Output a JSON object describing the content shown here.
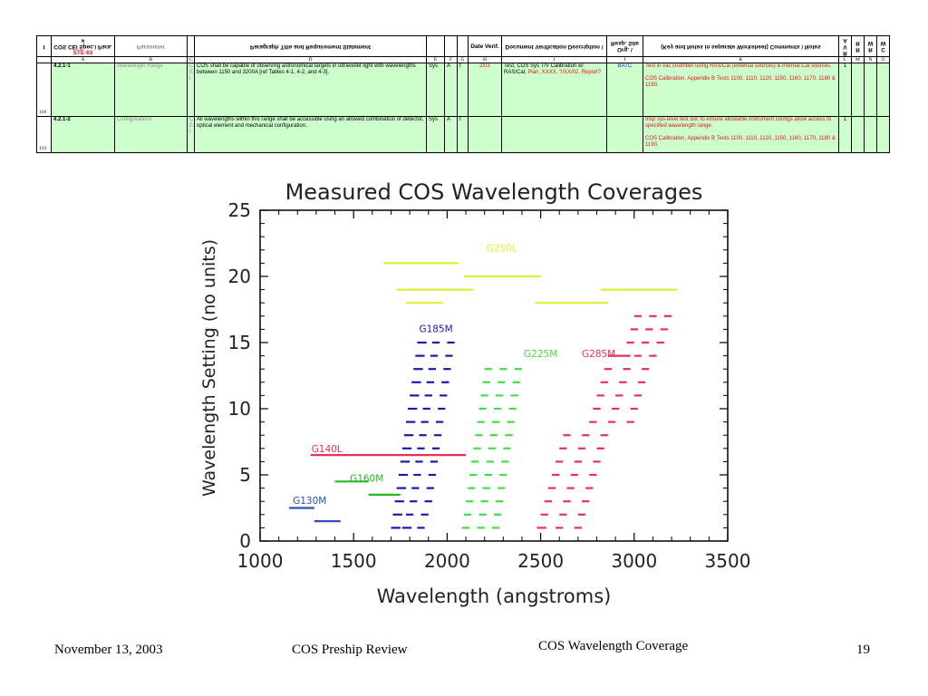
{
  "table": {
    "header": {
      "num": "I",
      "para_label": "COS CEI Spec.\\ Para. #",
      "spec_id": "STE-63",
      "parameter": "Parameter",
      "statement": "Paragraph Title and Requirement Statement",
      "date": "Date Verif.",
      "doc": "Document Verification Description \\",
      "org": "Org. \\ Resp. Site",
      "comments": "(Key and Notes in separate Worksheet) Comments \\ Notes",
      "results": "Results",
      "rva": "R V A",
      "waiver": "Waiver",
      "c_w": "C W",
      "r_w": "R W",
      "r_r": "R R"
    },
    "letters": [
      "A",
      "B",
      "C",
      "D",
      "E",
      "F",
      "G",
      "H",
      "I",
      "J",
      "K",
      "L",
      "M",
      "N",
      "O"
    ],
    "rows": [
      {
        "rownum": "118",
        "para": "4.2.1-1",
        "parameter": "Wavelength Range",
        "c": "C\nE\nI",
        "statement": "COS shall be capable of observing astronomical targets in ultraviolet light with wavelengths between 1150 and 3200A [ref Tables 4-1, 4-2, and 4-3].",
        "e": "Sys",
        "f": "A",
        "g": "t",
        "date": "2/03",
        "doc_a": "Test, COS Sys T/V Calibration w/ RAS/Cal, ",
        "doc_b": "Plan, XXXX, ?/XX/02. Report?",
        "org": "BATC",
        "comment_a": "Test in vac chamber using RAS/Cal (external sources) & internal Cal sources.",
        "comment_b": "COS Calibration, Appendix B Tests 1100, 1110, 1120, 1150, 1160, 1170, 1180 & 1190.",
        "l": "1"
      },
      {
        "rownum": "119",
        "para": "4.2.1-2",
        "parameter": "Configurations",
        "c": "C\nE\nI",
        "statement": "All wavelengths within this range shall be accessible using an allowed combination of detector, optical element and mechanical configuration.",
        "e": "Sys",
        "f": "A",
        "g": "t",
        "date": "",
        "doc_a": "",
        "doc_b": "",
        "org": "",
        "comment_a": "Insp sys-level test doc to ensure allowable instrument configs allow access to specified wavelength range.",
        "comment_b": "COS Calibration, Appendix B Tests 1100, 1110, 1120, 1150, 1160, 1170, 1180 & 1190.",
        "l": "1"
      }
    ]
  },
  "chart_data": {
    "type": "scatter",
    "title": "Measured COS Wavelength Coverages",
    "xlabel": "Wavelength (angstroms)",
    "ylabel": "Wavelength Setting (no units)",
    "xlim": [
      1000,
      3500
    ],
    "ylim": [
      0,
      25
    ],
    "xticks": [
      1000,
      1500,
      2000,
      2500,
      3000,
      3500
    ],
    "yticks": [
      0,
      5,
      10,
      15,
      20,
      25
    ],
    "grid": false,
    "legend": "none",
    "series": [
      {
        "name": "G130M",
        "color": "#2b4fc8",
        "label_pos": [
          1175,
          2.8
        ],
        "segments": [
          [
            1155,
            1290,
            2.5
          ],
          [
            1290,
            1430,
            1.5
          ]
        ]
      },
      {
        "name": "G160M",
        "color": "#22bb22",
        "label_pos": [
          1480,
          4.5
        ],
        "segments": [
          [
            1400,
            1580,
            4.5
          ],
          [
            1580,
            1750,
            3.5
          ]
        ]
      },
      {
        "name": "G140L",
        "color": "#e8305a",
        "label_pos": [
          1275,
          6.7
        ],
        "segments": [
          [
            1270,
            2100,
            6.5
          ]
        ]
      },
      {
        "name": "G185M",
        "color": "#1a1aaa",
        "label_pos": [
          1850,
          15.8
        ],
        "segments": [
          [
            1700,
            1750,
            1
          ],
          [
            1760,
            1810,
            1
          ],
          [
            1840,
            1880,
            1
          ],
          [
            1710,
            1760,
            2
          ],
          [
            1780,
            1820,
            2
          ],
          [
            1860,
            1900,
            2
          ],
          [
            1720,
            1770,
            3
          ],
          [
            1800,
            1840,
            3
          ],
          [
            1880,
            1920,
            3
          ],
          [
            1730,
            1780,
            4
          ],
          [
            1810,
            1850,
            4
          ],
          [
            1890,
            1930,
            4
          ],
          [
            1740,
            1790,
            5
          ],
          [
            1820,
            1860,
            5
          ],
          [
            1900,
            1940,
            5
          ],
          [
            1750,
            1800,
            6
          ],
          [
            1830,
            1870,
            6
          ],
          [
            1910,
            1950,
            6
          ],
          [
            1760,
            1810,
            7
          ],
          [
            1840,
            1880,
            7
          ],
          [
            1920,
            1960,
            7
          ],
          [
            1770,
            1820,
            8
          ],
          [
            1850,
            1890,
            8
          ],
          [
            1930,
            1970,
            8
          ],
          [
            1780,
            1830,
            9
          ],
          [
            1860,
            1900,
            9
          ],
          [
            1940,
            1980,
            9
          ],
          [
            1790,
            1840,
            10
          ],
          [
            1870,
            1910,
            10
          ],
          [
            1950,
            1990,
            10
          ],
          [
            1800,
            1850,
            11
          ],
          [
            1880,
            1920,
            11
          ],
          [
            1960,
            2000,
            11
          ],
          [
            1810,
            1860,
            12
          ],
          [
            1890,
            1930,
            12
          ],
          [
            1970,
            2010,
            12
          ],
          [
            1820,
            1870,
            13
          ],
          [
            1900,
            1940,
            13
          ],
          [
            1980,
            2020,
            13
          ],
          [
            1830,
            1880,
            14
          ],
          [
            1910,
            1950,
            14
          ],
          [
            1990,
            2030,
            14
          ],
          [
            1840,
            1890,
            15
          ],
          [
            1920,
            1960,
            15
          ],
          [
            2000,
            2040,
            15
          ]
        ]
      },
      {
        "name": "G225M",
        "color": "#44dd44",
        "label_pos": [
          2410,
          13.9
        ],
        "segments": [
          [
            2080,
            2120,
            1
          ],
          [
            2160,
            2200,
            1
          ],
          [
            2240,
            2280,
            1
          ],
          [
            2090,
            2130,
            2
          ],
          [
            2170,
            2210,
            2
          ],
          [
            2250,
            2290,
            2
          ],
          [
            2100,
            2140,
            3
          ],
          [
            2180,
            2220,
            3
          ],
          [
            2260,
            2300,
            3
          ],
          [
            2110,
            2150,
            4
          ],
          [
            2190,
            2230,
            4
          ],
          [
            2270,
            2310,
            4
          ],
          [
            2120,
            2160,
            5
          ],
          [
            2200,
            2240,
            5
          ],
          [
            2280,
            2320,
            5
          ],
          [
            2130,
            2170,
            6
          ],
          [
            2210,
            2250,
            6
          ],
          [
            2290,
            2330,
            6
          ],
          [
            2140,
            2180,
            7
          ],
          [
            2220,
            2260,
            7
          ],
          [
            2300,
            2340,
            7
          ],
          [
            2150,
            2190,
            8
          ],
          [
            2230,
            2270,
            8
          ],
          [
            2310,
            2350,
            8
          ],
          [
            2160,
            2200,
            9
          ],
          [
            2240,
            2280,
            9
          ],
          [
            2320,
            2360,
            9
          ],
          [
            2170,
            2210,
            10
          ],
          [
            2250,
            2290,
            10
          ],
          [
            2330,
            2370,
            10
          ],
          [
            2180,
            2220,
            11
          ],
          [
            2260,
            2300,
            11
          ],
          [
            2340,
            2380,
            11
          ],
          [
            2190,
            2230,
            12
          ],
          [
            2270,
            2310,
            12
          ],
          [
            2350,
            2390,
            12
          ],
          [
            2200,
            2240,
            13
          ],
          [
            2280,
            2320,
            13
          ],
          [
            2360,
            2400,
            13
          ]
        ]
      },
      {
        "name": "G285M",
        "color": "#e8305a",
        "label_pos": [
          2720,
          13.9
        ],
        "segments": [
          [
            2480,
            2530,
            1
          ],
          [
            2580,
            2620,
            1
          ],
          [
            2680,
            2720,
            1
          ],
          [
            2500,
            2540,
            2
          ],
          [
            2600,
            2640,
            2
          ],
          [
            2700,
            2740,
            2
          ],
          [
            2520,
            2560,
            3
          ],
          [
            2620,
            2660,
            3
          ],
          [
            2720,
            2760,
            3
          ],
          [
            2540,
            2580,
            4
          ],
          [
            2640,
            2680,
            4
          ],
          [
            2740,
            2780,
            4
          ],
          [
            2560,
            2600,
            5
          ],
          [
            2660,
            2700,
            5
          ],
          [
            2760,
            2800,
            5
          ],
          [
            2580,
            2620,
            6
          ],
          [
            2680,
            2720,
            6
          ],
          [
            2780,
            2820,
            6
          ],
          [
            2600,
            2640,
            7
          ],
          [
            2700,
            2740,
            7
          ],
          [
            2800,
            2840,
            7
          ],
          [
            2620,
            2660,
            8
          ],
          [
            2720,
            2760,
            8
          ],
          [
            2820,
            2860,
            8
          ],
          [
            2760,
            2800,
            9
          ],
          [
            2860,
            2900,
            9
          ],
          [
            2960,
            3000,
            9
          ],
          [
            2780,
            2820,
            10
          ],
          [
            2880,
            2920,
            10
          ],
          [
            2980,
            3020,
            10
          ],
          [
            2800,
            2840,
            11
          ],
          [
            2900,
            2940,
            11
          ],
          [
            3000,
            3040,
            11
          ],
          [
            2820,
            2860,
            12
          ],
          [
            2920,
            2960,
            12
          ],
          [
            3020,
            3060,
            12
          ],
          [
            2840,
            2880,
            13
          ],
          [
            2940,
            2980,
            13
          ],
          [
            3040,
            3080,
            13
          ],
          [
            2860,
            2980,
            14
          ],
          [
            3000,
            3040,
            14
          ],
          [
            3080,
            3120,
            14
          ],
          [
            2960,
            3000,
            15
          ],
          [
            3040,
            3080,
            15
          ],
          [
            3120,
            3160,
            15
          ],
          [
            2980,
            3020,
            16
          ],
          [
            3060,
            3100,
            16
          ],
          [
            3140,
            3180,
            16
          ],
          [
            3000,
            3040,
            17
          ],
          [
            3080,
            3120,
            17
          ],
          [
            3160,
            3200,
            17
          ]
        ]
      },
      {
        "name": "G250L",
        "color": "#ddee33",
        "label_pos": [
          2210,
          21.9
        ],
        "segments": [
          [
            1660,
            2060,
            21
          ],
          [
            1730,
            2140,
            19
          ],
          [
            1780,
            1980,
            18
          ],
          [
            2090,
            2500,
            20
          ],
          [
            2470,
            2860,
            18
          ],
          [
            2820,
            3230,
            19
          ]
        ]
      }
    ]
  },
  "footer": {
    "date": "November 13, 2003",
    "event": "COS Preship Review",
    "topic": "COS Wavelength Coverage",
    "page": "19"
  }
}
